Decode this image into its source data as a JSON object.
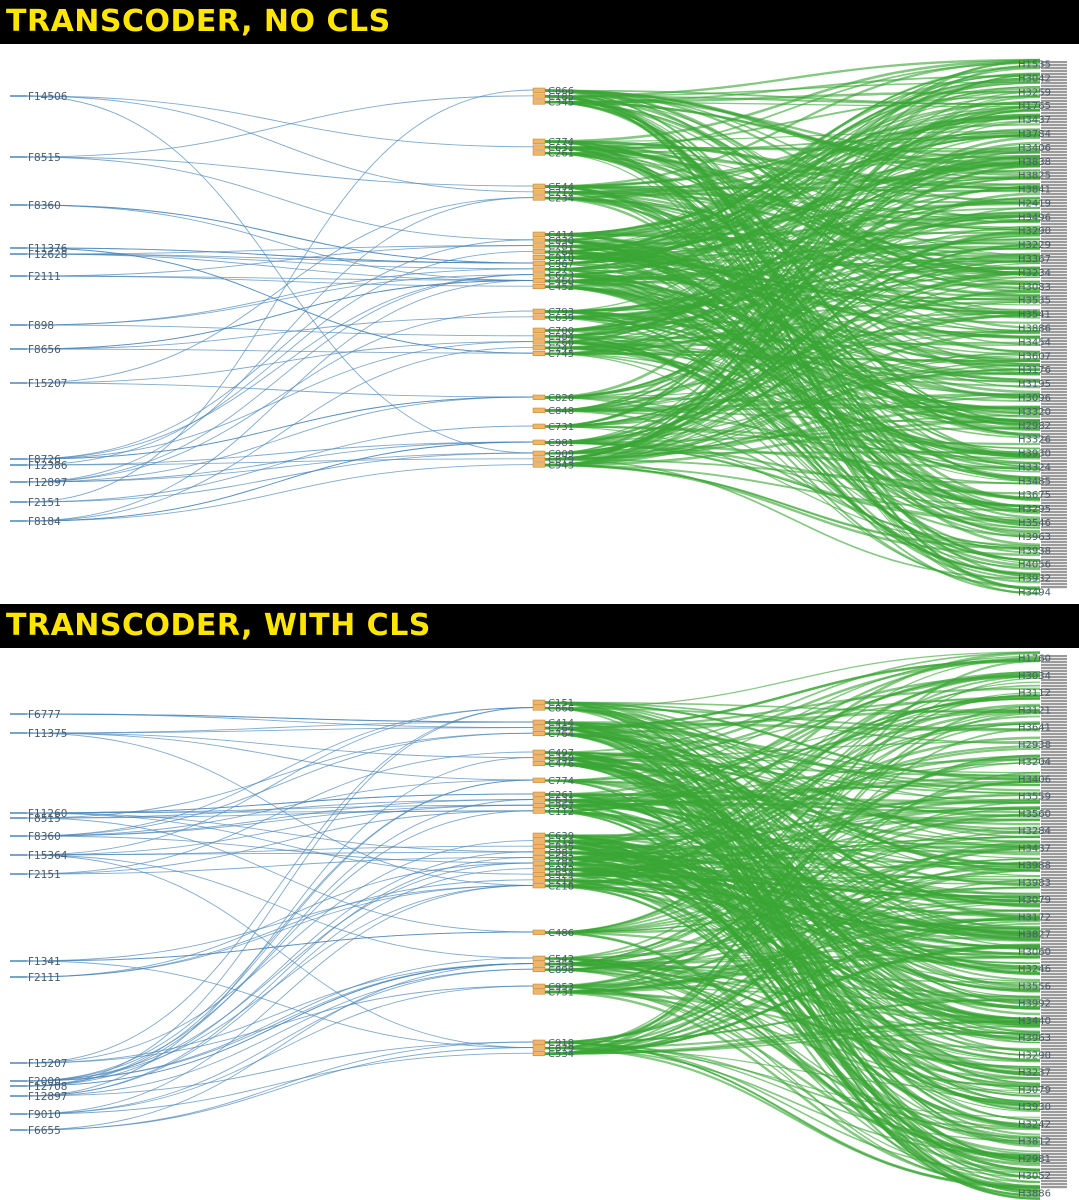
{
  "colors": {
    "header_bg": "#000000",
    "header_text": "#ffe600",
    "f_link": "#4a86b8",
    "h_link": "#3aa635",
    "c_node": "#f2b566",
    "h_node": "#9a9a9a",
    "label": "#4a5a6a"
  },
  "panels": [
    {
      "title": "TRANSCODER, NO CLS",
      "f_nodes": [
        "F14506",
        "F8515",
        "F8360",
        "F11376",
        "F12628",
        "F2111",
        "F898",
        "F8656",
        "F15207",
        "F8726",
        "F12386",
        "F12897",
        "F2151",
        "F8184"
      ],
      "c_nodes": [
        "C866",
        "C185",
        "C345",
        "C774",
        "C631",
        "C261",
        "C544",
        "C212",
        "C234",
        "C414",
        "C830",
        "C787",
        "C264",
        "C910",
        "C967",
        "C37",
        "C623",
        "C460",
        "C452",
        "C793",
        "C639",
        "C700",
        "C504",
        "C266",
        "C241",
        "C745",
        "C826",
        "C848",
        "C731",
        "C981",
        "C909",
        "C879",
        "C943"
      ],
      "h_nodes": [
        "H1535",
        "H3042",
        "H3259",
        "H1765",
        "H3437",
        "H3784",
        "H3406",
        "H3838",
        "H3825",
        "H3841",
        "H2419",
        "H3496",
        "H3290",
        "H3229",
        "H3367",
        "H3234",
        "H3083",
        "H3535",
        "H3541",
        "H3886",
        "H3454",
        "H3607",
        "H3176",
        "H3195",
        "H3096",
        "H3320",
        "H2982",
        "H3326",
        "H3930",
        "H3324",
        "H3485",
        "H3675",
        "H3295",
        "H3546",
        "H3963",
        "H3938",
        "H4056",
        "H3932",
        "H3494"
      ]
    },
    {
      "title": "TRANSCODER, WITH CLS",
      "f_nodes": [
        "F6777",
        "F11375",
        "F11260",
        "F8515",
        "F8360",
        "F15364",
        "F2151",
        "F1341",
        "F2111",
        "F15207",
        "F2000",
        "F12708",
        "F12897",
        "F9010",
        "F6655"
      ],
      "c_nodes": [
        "C151",
        "C866",
        "C414",
        "C264",
        "C764",
        "C497",
        "C359",
        "C476",
        "C774",
        "C261",
        "C631",
        "C967",
        "C112",
        "C639",
        "C214",
        "C835",
        "C981",
        "C582",
        "C182",
        "C842",
        "C924",
        "C212",
        "C218",
        "C486",
        "C542",
        "C353",
        "C898",
        "C953",
        "C731",
        "C918",
        "C879",
        "C534"
      ],
      "h_nodes": [
        "H1760",
        "H3034",
        "H3112",
        "H3121",
        "H3641",
        "H2938",
        "H3204",
        "H3406",
        "H3559",
        "H3560",
        "H3284",
        "H3437",
        "H3988",
        "H3983",
        "H3079",
        "H3172",
        "H3827",
        "H3060",
        "H3246",
        "H3556",
        "H3992",
        "H3440",
        "H3963",
        "H3290",
        "H3237",
        "H3079",
        "H3930",
        "H3242",
        "H3812",
        "H2981",
        "H3052",
        "H3886"
      ]
    }
  ]
}
